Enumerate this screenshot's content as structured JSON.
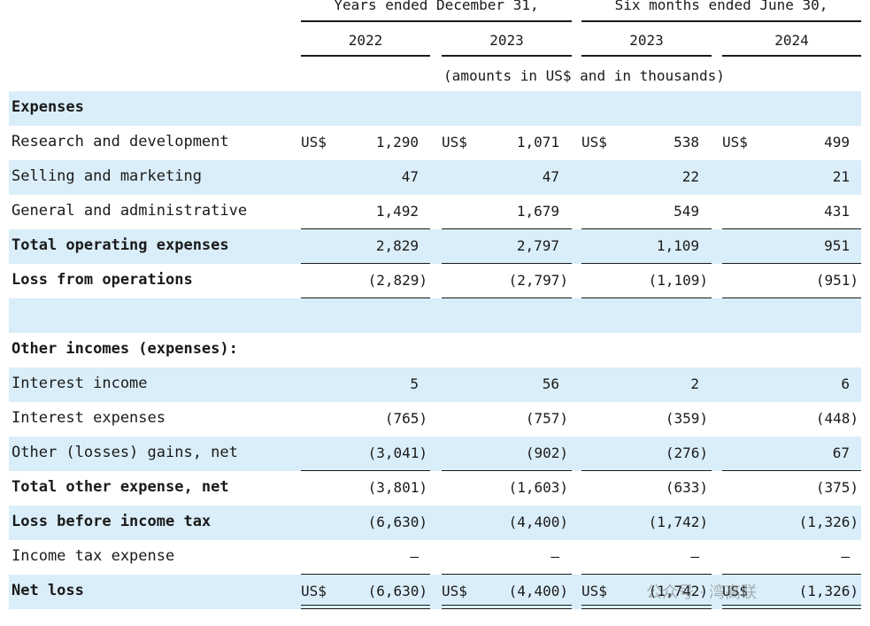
{
  "header": {
    "group1": "Years ended December  31,",
    "group2": "Six  months ended June  30,",
    "years": [
      "2022",
      "2023",
      "2023",
      "2024"
    ],
    "units": "(amounts in US$ and in thousands)"
  },
  "rows": [
    {
      "label": "Expenses",
      "bold": true,
      "shade": true,
      "values": [
        "",
        "",
        "",
        ""
      ],
      "currency": false,
      "underline": false,
      "double": false
    },
    {
      "label": "Research and development",
      "bold": false,
      "shade": false,
      "values": [
        "1,290",
        "1,071",
        "538",
        "499"
      ],
      "currency": true,
      "underline": false,
      "double": false
    },
    {
      "label": "Selling and marketing",
      "bold": false,
      "shade": true,
      "values": [
        "47",
        "47",
        "22",
        "21"
      ],
      "currency": false,
      "underline": false,
      "double": false
    },
    {
      "label": "General and administrative",
      "bold": false,
      "shade": false,
      "values": [
        "1,492",
        "1,679",
        "549",
        "431"
      ],
      "currency": false,
      "underline": true,
      "double": false
    },
    {
      "label": "Total operating expenses",
      "bold": true,
      "shade": true,
      "values": [
        "2,829",
        "2,797",
        "1,109",
        "951"
      ],
      "currency": false,
      "underline": true,
      "double": false
    },
    {
      "label": "Loss from operations",
      "bold": true,
      "shade": false,
      "values": [
        "(2,829)",
        "(2,797)",
        "(1,109)",
        "(951)"
      ],
      "currency": false,
      "underline": true,
      "double": false
    },
    {
      "label": "",
      "bold": false,
      "shade": true,
      "values": [
        "",
        "",
        "",
        ""
      ],
      "currency": false,
      "underline": false,
      "double": false
    },
    {
      "label": "Other incomes (expenses):",
      "bold": true,
      "shade": false,
      "values": [
        "",
        "",
        "",
        ""
      ],
      "currency": false,
      "underline": false,
      "double": false
    },
    {
      "label": "Interest income",
      "bold": false,
      "shade": true,
      "values": [
        "5",
        "56",
        "2",
        "6"
      ],
      "currency": false,
      "underline": false,
      "double": false
    },
    {
      "label": "Interest expenses",
      "bold": false,
      "shade": false,
      "values": [
        "(765)",
        "(757)",
        "(359)",
        "(448)"
      ],
      "currency": false,
      "underline": false,
      "double": false
    },
    {
      "label": "Other (losses) gains, net",
      "bold": false,
      "shade": true,
      "values": [
        "(3,041)",
        "(902)",
        "(276)",
        "67"
      ],
      "currency": false,
      "underline": true,
      "double": false
    },
    {
      "label": "Total other expense, net",
      "bold": true,
      "shade": false,
      "values": [
        "(3,801)",
        "(1,603)",
        "(633)",
        "(375)"
      ],
      "currency": false,
      "underline": false,
      "double": false
    },
    {
      "label": "Loss before income tax",
      "bold": true,
      "shade": true,
      "values": [
        "(6,630)",
        "(4,400)",
        "(1,742)",
        "(1,326)"
      ],
      "currency": false,
      "underline": false,
      "double": false
    },
    {
      "label": "Income tax expense",
      "bold": false,
      "shade": false,
      "values": [
        "—",
        "—",
        "—",
        "—"
      ],
      "currency": false,
      "underline": true,
      "double": false
    },
    {
      "label": "Net loss",
      "bold": true,
      "shade": true,
      "values": [
        "(6,630)",
        "(4,400)",
        "(1,742)",
        "(1,326)"
      ],
      "currency": true,
      "underline": false,
      "double": true
    }
  ],
  "currency_symbol": "US$",
  "watermark": "公众号 · 湾高联"
}
